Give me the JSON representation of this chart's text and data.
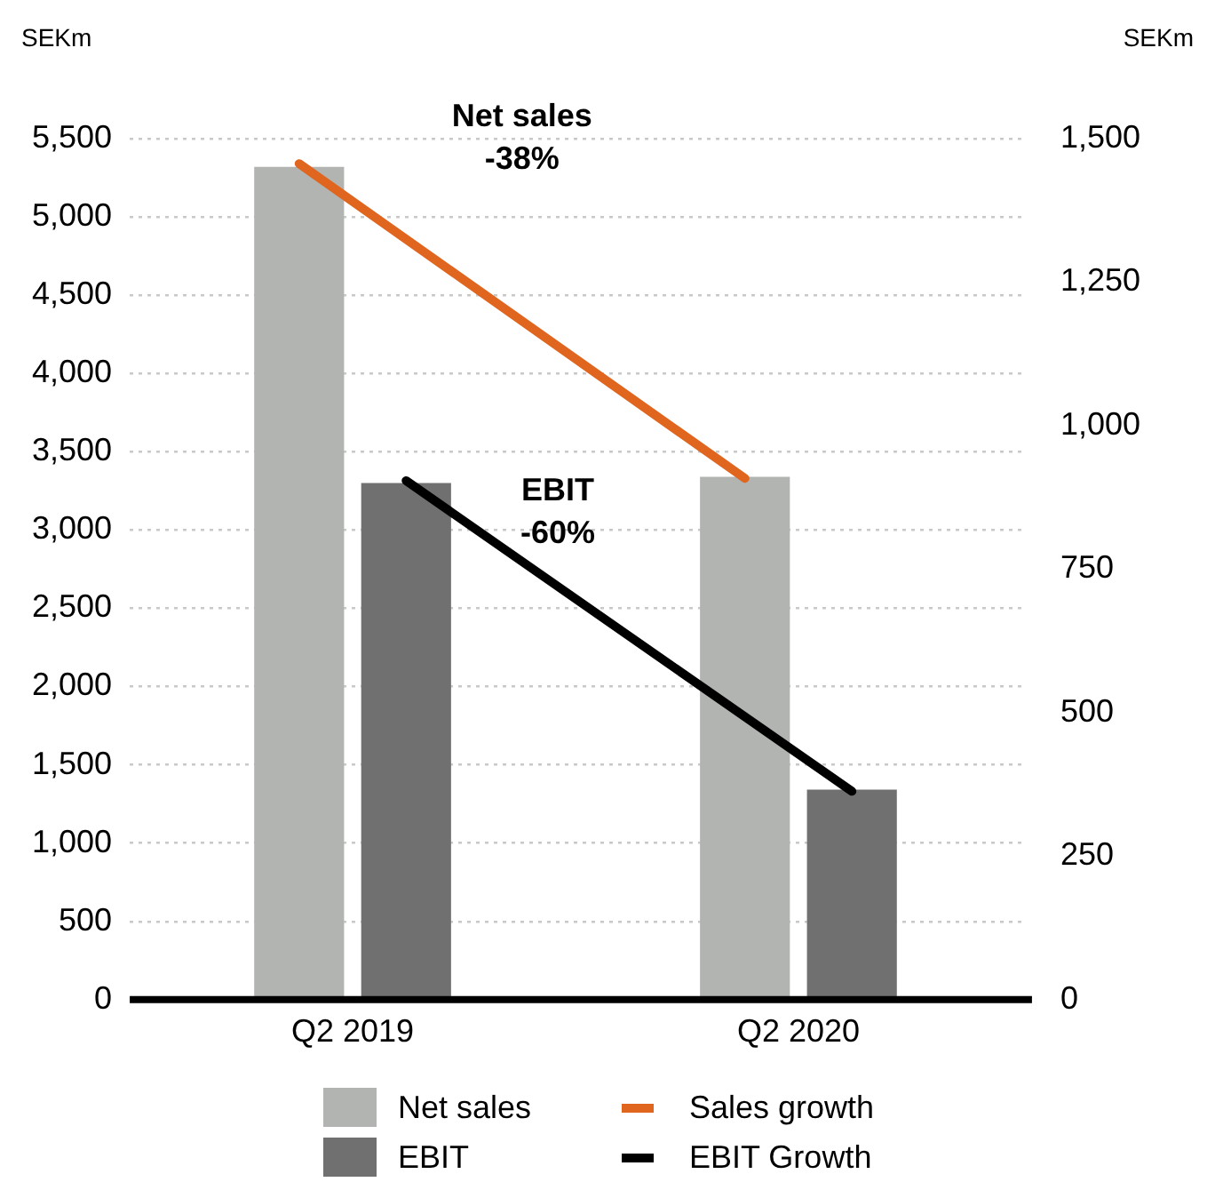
{
  "chart_data": {
    "type": "bar",
    "ylabel": "SEKm",
    "y2label": "SEKm",
    "categories": [
      "Q2 2019",
      "Q2 2020"
    ],
    "series": [
      {
        "name": "Net sales",
        "color": "#b2b4b1",
        "values": [
          5320,
          3340
        ]
      },
      {
        "name": "EBIT",
        "axis": "y2",
        "color": "#6f706f",
        "values": [
          900,
          366
        ]
      },
      {
        "name": "Sales growth",
        "type": "line",
        "color": "#e0651e",
        "values": [
          5340,
          3330
        ]
      },
      {
        "name": "EBIT Growth",
        "type": "line",
        "axis": "y2",
        "color": "#000000",
        "values": [
          904,
          363
        ]
      }
    ],
    "ylim": [
      0,
      5500
    ],
    "yticks": [
      0,
      500,
      {
        "value": 1000,
        "label": "1,000"
      },
      {
        "value": 1500,
        "label": "1,500"
      },
      {
        "value": 2000,
        "label": "2,000"
      },
      {
        "value": 2500,
        "label": "2,500"
      },
      {
        "value": 3000,
        "label": "3,000"
      },
      {
        "value": 3500,
        "label": "3,500"
      },
      {
        "value": 4000,
        "label": "4,000"
      },
      {
        "value": 4500,
        "label": "4,500"
      },
      {
        "value": 5000,
        "label": "5,000"
      },
      {
        "value": 5500,
        "label": "5,500"
      }
    ],
    "y2lim": [
      0,
      1500
    ],
    "y2ticks": [
      0,
      250,
      500,
      750,
      {
        "value": 1000,
        "label": "1,000"
      },
      {
        "value": 1250,
        "label": "1,250"
      },
      {
        "value": 1500,
        "label": "1,500"
      }
    ],
    "grid": "y",
    "legend": "bottom",
    "marker": "none",
    "line_style": "solid",
    "annotations": [
      "Net sales\n-38%",
      "EBIT\n-60%"
    ]
  }
}
